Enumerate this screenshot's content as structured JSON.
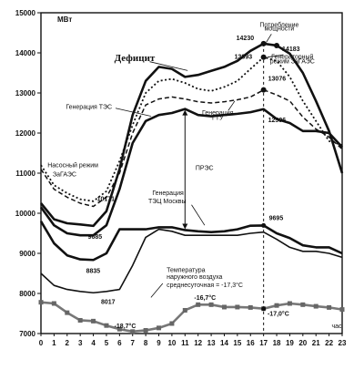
{
  "chart_data": {
    "type": "line",
    "title": "",
    "xlabel": "",
    "ylabel": "",
    "y_unit": "МВт",
    "x_unit": "час",
    "xlim": [
      0,
      23
    ],
    "ylim": [
      7000,
      15000
    ],
    "x_ticks": [
      0,
      1,
      2,
      3,
      4,
      5,
      6,
      7,
      8,
      9,
      10,
      11,
      12,
      13,
      14,
      15,
      16,
      17,
      18,
      19,
      20,
      21,
      22,
      23
    ],
    "y_ticks": [
      7000,
      8000,
      9000,
      10000,
      11000,
      12000,
      13000,
      14000,
      15000
    ],
    "grid": false,
    "legend": "none",
    "x": [
      0,
      1,
      2,
      3,
      4,
      5,
      6,
      7,
      8,
      9,
      10,
      11,
      12,
      13,
      14,
      15,
      16,
      17,
      18,
      19,
      20,
      21,
      22,
      23
    ],
    "series": [
      {
        "id": "consumption",
        "style": "solid-thick",
        "values": [
          10250,
          9850,
          9750,
          9720,
          9685,
          10050,
          11100,
          12450,
          13300,
          13650,
          13600,
          13400,
          13450,
          13550,
          13650,
          13800,
          14050,
          14230,
          14183,
          13980,
          13500,
          12800,
          12050,
          11000
        ]
      },
      {
        "id": "tes_generation",
        "style": "solid-thick",
        "values": [
          10150,
          9700,
          9500,
          9450,
          9450,
          9700,
          10600,
          11750,
          12300,
          12450,
          12500,
          12600,
          12450,
          12420,
          12450,
          12480,
          12520,
          12596,
          12350,
          12250,
          12050,
          12050,
          12000,
          11650
        ]
      },
      {
        "id": "chp_moscow",
        "style": "solid-thick",
        "values": [
          9800,
          9250,
          8950,
          8850,
          8835,
          9000,
          9600,
          9600,
          9600,
          9650,
          9650,
          9580,
          9550,
          9530,
          9550,
          9600,
          9690,
          9695,
          9500,
          9380,
          9200,
          9150,
          9150,
          9000
        ]
      },
      {
        "id": "gtu_generation",
        "style": "dashed",
        "values": [
          11100,
          10600,
          10400,
          10250,
          10171,
          10400,
          11000,
          12000,
          12700,
          12850,
          12900,
          12850,
          12780,
          12750,
          12780,
          12830,
          12900,
          13076,
          12950,
          12800,
          12400,
          12100,
          11900,
          11600
        ]
      },
      {
        "id": "zagaes_mode",
        "style": "dotted",
        "values": [
          11200,
          10700,
          10500,
          10350,
          10300,
          10550,
          11300,
          12200,
          13000,
          13300,
          13350,
          13250,
          13100,
          13050,
          13150,
          13300,
          13600,
          13893,
          13800,
          13400,
          12800,
          12300,
          11800,
          11700
        ]
      },
      {
        "id": "zagaes_pumping",
        "style": "solid",
        "values": [
          8500,
          8200,
          8100,
          8050,
          8017,
          8050,
          8100,
          8700,
          9400,
          9600,
          9550,
          9450,
          9450,
          9450,
          9450,
          9450,
          9500,
          9530,
          9350,
          9150,
          9050,
          9050,
          9000,
          8900
        ]
      },
      {
        "id": "air_temperature",
        "style": "gray-markers",
        "values": [
          7780,
          7750,
          7520,
          7330,
          7310,
          7200,
          7110,
          7050,
          7080,
          7140,
          7250,
          7580,
          7720,
          7720,
          7660,
          7660,
          7650,
          7620,
          7700,
          7750,
          7720,
          7680,
          7650,
          7600
        ]
      }
    ],
    "point_labels": [
      {
        "text": "14230",
        "x": 17,
        "y": 14230
      },
      {
        "text": "14183",
        "x": 18,
        "y": 14183
      },
      {
        "text": "13893",
        "x": 17,
        "y": 13893
      },
      {
        "text": "13076",
        "x": 17,
        "y": 13076
      },
      {
        "text": "12596",
        "x": 17,
        "y": 12596
      },
      {
        "text": "10171",
        "x": 4,
        "y": 10171
      },
      {
        "text": "9685",
        "x": 4,
        "y": 9685
      },
      {
        "text": "9695",
        "x": 17,
        "y": 9695
      },
      {
        "text": "8835",
        "x": 4,
        "y": 8835
      },
      {
        "text": "8017",
        "x": 5,
        "y": 8017
      }
    ],
    "annotations": {
      "deficit": "Дефицит",
      "consumption": [
        "Потребление",
        "мощности"
      ],
      "zagaes_mode": [
        "Генераторный",
        "режим ЗаГАЭС"
      ],
      "tes": "Генерация ТЭС",
      "gtu": [
        "Генерация",
        "ГТУ"
      ],
      "pumping": [
        "Насосный режим",
        "ЗаГАЭС"
      ],
      "pres": "ПРЭС",
      "chp_moscow": [
        "Генерация",
        "ТЭЦ Москвы"
      ],
      "temperature": [
        "Температура",
        "наружного воздуха",
        "среднесуточная = -17,3°С"
      ],
      "temp_min": "-18,7°С",
      "temp_max": "-16,7°С",
      "temp_17": "-17,0°С"
    }
  }
}
